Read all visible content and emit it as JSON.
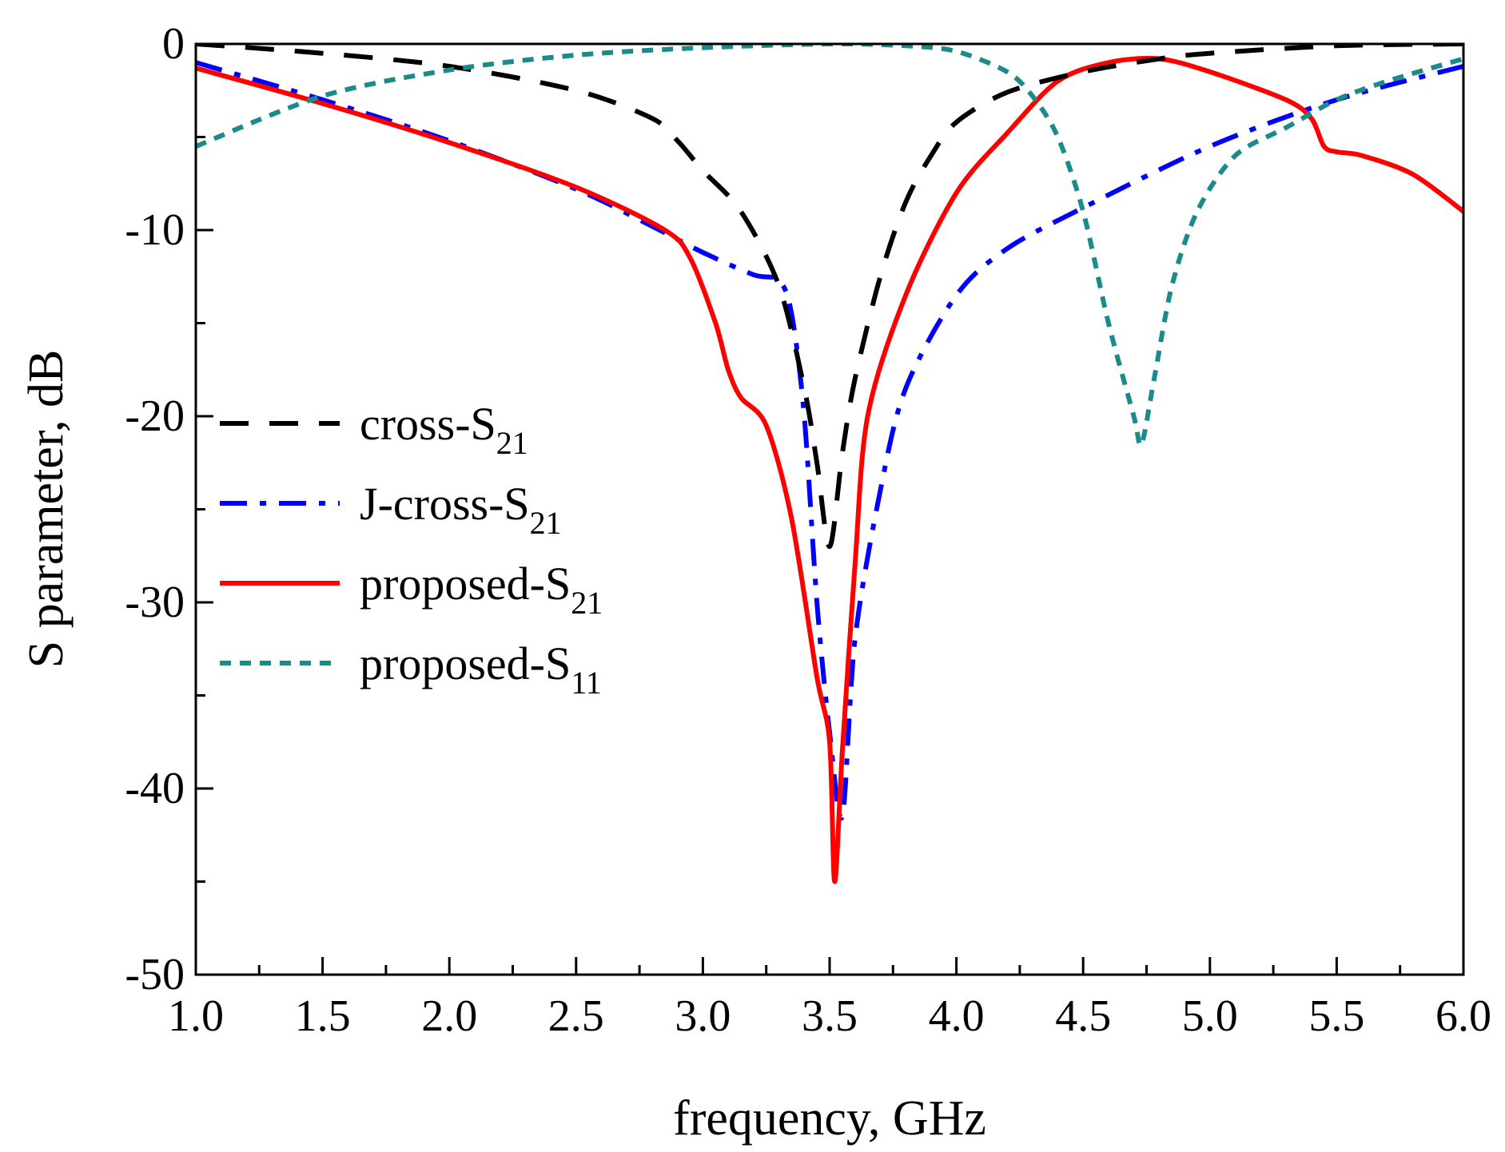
{
  "chart_data": {
    "type": "line",
    "title": "",
    "xlabel": "frequency, GHz",
    "ylabel": "S parameter, dB",
    "xlim": [
      1.0,
      6.0
    ],
    "ylim": [
      -50,
      0
    ],
    "x_ticks": [
      "1.0",
      "1.5",
      "2.0",
      "2.5",
      "3.0",
      "3.5",
      "4.0",
      "4.5",
      "5.0",
      "5.5",
      "6.0"
    ],
    "y_ticks": [
      "0",
      "-10",
      "-20",
      "-30",
      "-40",
      "-50"
    ],
    "grid": false,
    "legend_position": "center-left",
    "series": [
      {
        "name": "cross-S21",
        "legend_main": "cross-S",
        "legend_sub": "21",
        "color": "#000000",
        "style": "dash",
        "x": [
          1.0,
          1.5,
          2.0,
          2.5,
          2.8,
          2.9,
          3.0,
          3.15,
          3.3,
          3.4,
          3.45,
          3.5,
          3.55,
          3.6,
          3.7,
          3.8,
          3.9,
          4.0,
          4.2,
          4.5,
          4.8,
          5.0,
          5.5,
          6.0
        ],
        "y": [
          0.0,
          -0.5,
          -1.2,
          -2.5,
          -4.0,
          -5.2,
          -6.8,
          -9.0,
          -13.0,
          -18.5,
          -22.5,
          -27.0,
          -22.0,
          -18.0,
          -12.5,
          -8.5,
          -6.0,
          -4.2,
          -2.6,
          -1.5,
          -0.8,
          -0.5,
          -0.1,
          0.0
        ]
      },
      {
        "name": "J-cross-S21",
        "legend_main": "J-cross-S",
        "legend_sub": "21",
        "color": "#0000ff",
        "style": "dashdot",
        "x": [
          1.0,
          1.5,
          2.0,
          2.5,
          2.8,
          3.0,
          3.2,
          3.3,
          3.35,
          3.4,
          3.45,
          3.5,
          3.55,
          3.6,
          3.7,
          3.8,
          4.0,
          4.2,
          4.5,
          5.0,
          5.5,
          6.0
        ],
        "y": [
          -1.0,
          -3.0,
          -5.2,
          -7.8,
          -9.8,
          -11.2,
          -12.4,
          -12.7,
          -14.5,
          -20.0,
          -30.0,
          -37.0,
          -41.5,
          -32.0,
          -24.0,
          -18.5,
          -13.5,
          -11.0,
          -8.8,
          -5.5,
          -3.0,
          -1.2
        ]
      },
      {
        "name": "proposed-S21",
        "legend_main": "proposed-S",
        "legend_sub": "21",
        "color": "#ff0000",
        "style": "solid",
        "x": [
          1.0,
          1.5,
          2.0,
          2.5,
          2.85,
          2.95,
          3.05,
          3.1,
          3.15,
          3.25,
          3.35,
          3.45,
          3.5,
          3.52,
          3.55,
          3.6,
          3.65,
          3.8,
          4.0,
          4.2,
          4.4,
          4.6,
          4.8,
          5.0,
          5.3,
          5.4,
          5.45,
          5.5,
          5.6,
          5.8,
          6.0
        ],
        "y": [
          -1.3,
          -3.2,
          -5.3,
          -7.7,
          -10.0,
          -11.5,
          -15.0,
          -17.5,
          -19.0,
          -20.5,
          -25.5,
          -34.0,
          -37.5,
          -45.0,
          -38.0,
          -28.0,
          -20.0,
          -13.5,
          -8.0,
          -4.8,
          -2.0,
          -1.0,
          -0.8,
          -1.5,
          -3.0,
          -4.0,
          -5.5,
          -5.8,
          -6.0,
          -7.0,
          -9.0
        ]
      },
      {
        "name": "proposed-S11",
        "legend_main": "proposed-S",
        "legend_sub": "11",
        "color": "#1a8a8a",
        "style": "shortdash",
        "x": [
          1.0,
          1.5,
          2.0,
          2.5,
          3.0,
          3.5,
          3.8,
          4.0,
          4.2,
          4.3,
          4.4,
          4.5,
          4.6,
          4.7,
          4.73,
          4.78,
          4.85,
          4.95,
          5.1,
          5.3,
          5.5,
          5.7,
          6.0
        ],
        "y": [
          -5.5,
          -2.8,
          -1.4,
          -0.6,
          -0.2,
          0.0,
          -0.1,
          -0.4,
          -1.5,
          -2.8,
          -5.0,
          -9.0,
          -15.0,
          -20.0,
          -21.5,
          -18.0,
          -13.0,
          -9.0,
          -6.0,
          -4.5,
          -3.0,
          -2.0,
          -0.8
        ]
      }
    ]
  }
}
